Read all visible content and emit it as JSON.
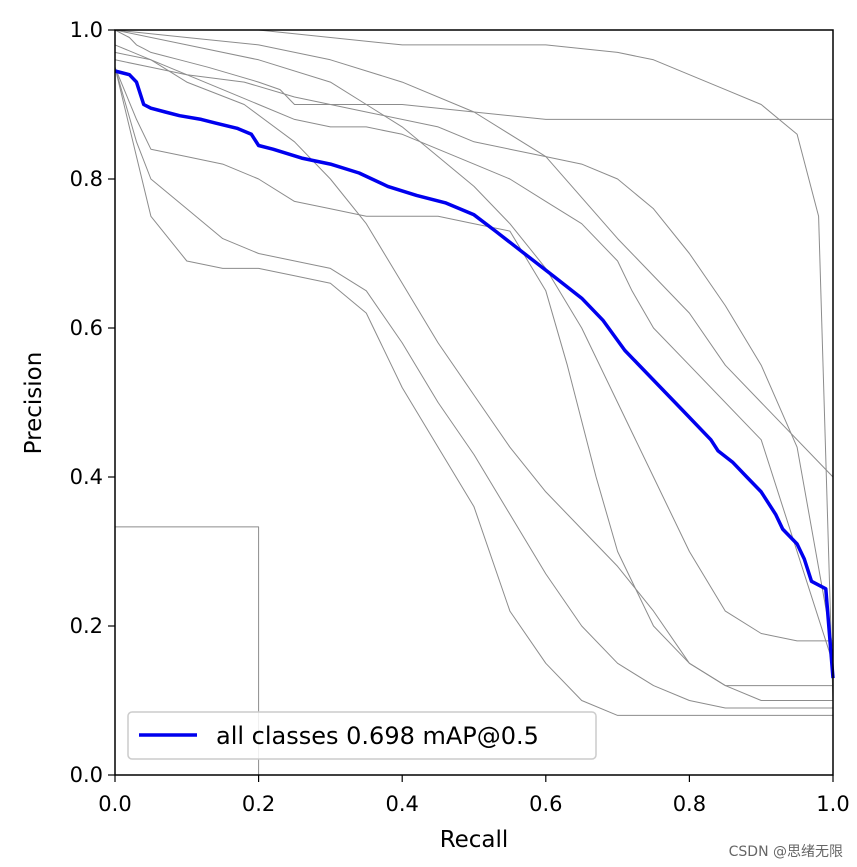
{
  "chart_data": {
    "type": "line",
    "xlabel": "Recall",
    "ylabel": "Precision",
    "xlim": [
      0,
      1
    ],
    "ylim": [
      0,
      1
    ],
    "x_ticks": [
      "0.0",
      "0.2",
      "0.4",
      "0.6",
      "0.8",
      "1.0"
    ],
    "y_ticks": [
      "0.0",
      "0.2",
      "0.4",
      "0.6",
      "0.8",
      "1.0"
    ],
    "legend": {
      "position": "lower-left",
      "label": "all classes 0.698 mAP@0.5"
    },
    "series": [
      {
        "name": "all classes 0.698 mAP@0.5",
        "color": "#0000ee",
        "x": [
          0.0,
          0.02,
          0.03,
          0.04,
          0.05,
          0.07,
          0.09,
          0.12,
          0.14,
          0.17,
          0.19,
          0.2,
          0.22,
          0.26,
          0.3,
          0.34,
          0.38,
          0.42,
          0.46,
          0.5,
          0.53,
          0.57,
          0.61,
          0.65,
          0.68,
          0.71,
          0.75,
          0.79,
          0.83,
          0.84,
          0.86,
          0.88,
          0.9,
          0.92,
          0.93,
          0.95,
          0.96,
          0.97,
          0.99,
          1.0
        ],
        "y": [
          0.945,
          0.94,
          0.93,
          0.9,
          0.895,
          0.89,
          0.885,
          0.88,
          0.875,
          0.868,
          0.86,
          0.845,
          0.84,
          0.828,
          0.82,
          0.808,
          0.79,
          0.778,
          0.768,
          0.752,
          0.73,
          0.7,
          0.67,
          0.64,
          0.61,
          0.57,
          0.53,
          0.49,
          0.45,
          0.435,
          0.42,
          0.4,
          0.38,
          0.35,
          0.33,
          0.31,
          0.29,
          0.26,
          0.25,
          0.13
        ]
      },
      {
        "color": "#8c8c8c",
        "x": [
          0.0,
          0.02,
          0.03,
          0.04,
          0.05,
          0.07,
          0.09,
          0.13,
          0.2,
          0.23,
          0.25,
          0.3,
          0.4,
          0.5,
          0.6,
          0.7,
          0.8,
          0.9,
          1.0
        ],
        "y": [
          1.0,
          0.99,
          0.98,
          0.975,
          0.97,
          0.965,
          0.96,
          0.95,
          0.93,
          0.92,
          0.9,
          0.9,
          0.9,
          0.89,
          0.88,
          0.88,
          0.88,
          0.88,
          0.88
        ]
      },
      {
        "color": "#8c8c8c",
        "x": [
          0.0,
          0.1,
          0.2,
          0.3,
          0.4,
          0.5,
          0.6,
          0.7,
          0.75,
          0.8,
          0.85,
          0.9,
          0.95,
          0.98,
          1.0
        ],
        "y": [
          1.0,
          1.0,
          1.0,
          0.99,
          0.98,
          0.98,
          0.98,
          0.97,
          0.96,
          0.94,
          0.92,
          0.9,
          0.86,
          0.75,
          0.1
        ]
      },
      {
        "color": "#8c8c8c",
        "x": [
          0.0,
          0.05,
          0.1,
          0.18,
          0.25,
          0.35,
          0.45,
          0.5,
          0.55,
          0.6,
          0.65,
          0.7,
          0.75,
          0.8,
          0.85,
          0.9,
          0.95,
          1.0
        ],
        "y": [
          0.96,
          0.95,
          0.94,
          0.93,
          0.91,
          0.89,
          0.87,
          0.85,
          0.84,
          0.83,
          0.82,
          0.8,
          0.76,
          0.7,
          0.63,
          0.55,
          0.44,
          0.17
        ]
      },
      {
        "color": "#8c8c8c",
        "x": [
          0.0,
          0.05,
          0.1,
          0.15,
          0.2,
          0.25,
          0.3,
          0.35,
          0.4,
          0.45,
          0.5,
          0.55,
          0.6,
          0.65,
          0.7,
          0.72,
          0.75,
          0.8,
          0.9,
          1.0
        ],
        "y": [
          0.97,
          0.96,
          0.94,
          0.92,
          0.9,
          0.88,
          0.87,
          0.87,
          0.86,
          0.84,
          0.82,
          0.8,
          0.77,
          0.74,
          0.69,
          0.65,
          0.6,
          0.55,
          0.45,
          0.15
        ]
      },
      {
        "color": "#8c8c8c",
        "x": [
          0.0,
          0.1,
          0.2,
          0.3,
          0.35,
          0.4,
          0.45,
          0.5,
          0.55,
          0.6,
          0.65,
          0.7,
          0.75,
          0.8,
          0.85,
          0.9,
          0.95,
          1.0
        ],
        "y": [
          1.0,
          0.98,
          0.96,
          0.93,
          0.9,
          0.87,
          0.83,
          0.79,
          0.74,
          0.68,
          0.6,
          0.5,
          0.4,
          0.3,
          0.22,
          0.19,
          0.18,
          0.18
        ]
      },
      {
        "color": "#8c8c8c",
        "x": [
          0.0,
          0.03,
          0.05,
          0.1,
          0.15,
          0.2,
          0.25,
          0.3,
          0.35,
          0.4,
          0.45,
          0.5,
          0.55,
          0.6,
          0.63,
          0.67,
          0.7,
          0.75,
          0.8,
          0.85,
          0.9,
          1.0
        ],
        "y": [
          0.95,
          0.88,
          0.84,
          0.83,
          0.82,
          0.8,
          0.77,
          0.76,
          0.75,
          0.75,
          0.75,
          0.74,
          0.73,
          0.65,
          0.55,
          0.4,
          0.3,
          0.2,
          0.15,
          0.12,
          0.1,
          0.1
        ]
      },
      {
        "color": "#8c8c8c",
        "x": [
          0.0,
          0.03,
          0.05,
          0.1,
          0.15,
          0.2,
          0.3,
          0.35,
          0.4,
          0.45,
          0.5,
          0.55,
          0.6,
          0.65,
          0.7,
          0.75,
          0.8,
          0.85,
          1.0
        ],
        "y": [
          0.95,
          0.85,
          0.8,
          0.76,
          0.72,
          0.7,
          0.68,
          0.65,
          0.58,
          0.5,
          0.43,
          0.35,
          0.27,
          0.2,
          0.15,
          0.12,
          0.1,
          0.09,
          0.09
        ]
      },
      {
        "color": "#8c8c8c",
        "x": [
          0.0,
          0.03,
          0.05,
          0.1,
          0.15,
          0.2,
          0.25,
          0.3,
          0.35,
          0.4,
          0.45,
          0.5,
          0.55,
          0.6,
          0.65,
          0.7,
          0.8,
          0.9,
          1.0
        ],
        "y": [
          0.95,
          0.83,
          0.75,
          0.69,
          0.68,
          0.68,
          0.67,
          0.66,
          0.62,
          0.52,
          0.44,
          0.36,
          0.22,
          0.15,
          0.1,
          0.08,
          0.08,
          0.08,
          0.08
        ]
      },
      {
        "color": "#8c8c8c",
        "x": [
          0.0,
          0.05,
          0.1,
          0.18,
          0.25,
          0.3,
          0.35,
          0.4,
          0.45,
          0.5,
          0.55,
          0.6,
          0.65,
          0.7,
          0.75,
          0.8,
          0.85,
          0.9,
          1.0
        ],
        "y": [
          0.98,
          0.96,
          0.93,
          0.9,
          0.85,
          0.8,
          0.74,
          0.66,
          0.58,
          0.51,
          0.44,
          0.38,
          0.33,
          0.28,
          0.22,
          0.15,
          0.12,
          0.12,
          0.12
        ]
      },
      {
        "color": "#8c8c8c",
        "x": [
          0.0,
          0.1,
          0.2,
          0.3,
          0.4,
          0.5,
          0.6,
          0.7,
          0.8,
          0.85,
          0.9,
          1.0
        ],
        "y": [
          1.0,
          0.99,
          0.98,
          0.96,
          0.93,
          0.89,
          0.83,
          0.72,
          0.62,
          0.55,
          0.5,
          0.4
        ]
      },
      {
        "color": "#8c8c8c",
        "x": [
          0.0,
          0.2,
          0.2,
          1.0
        ],
        "y": [
          0.333,
          0.333,
          0.0,
          0.0
        ]
      }
    ]
  },
  "watermark": "CSDN @思绪无限"
}
